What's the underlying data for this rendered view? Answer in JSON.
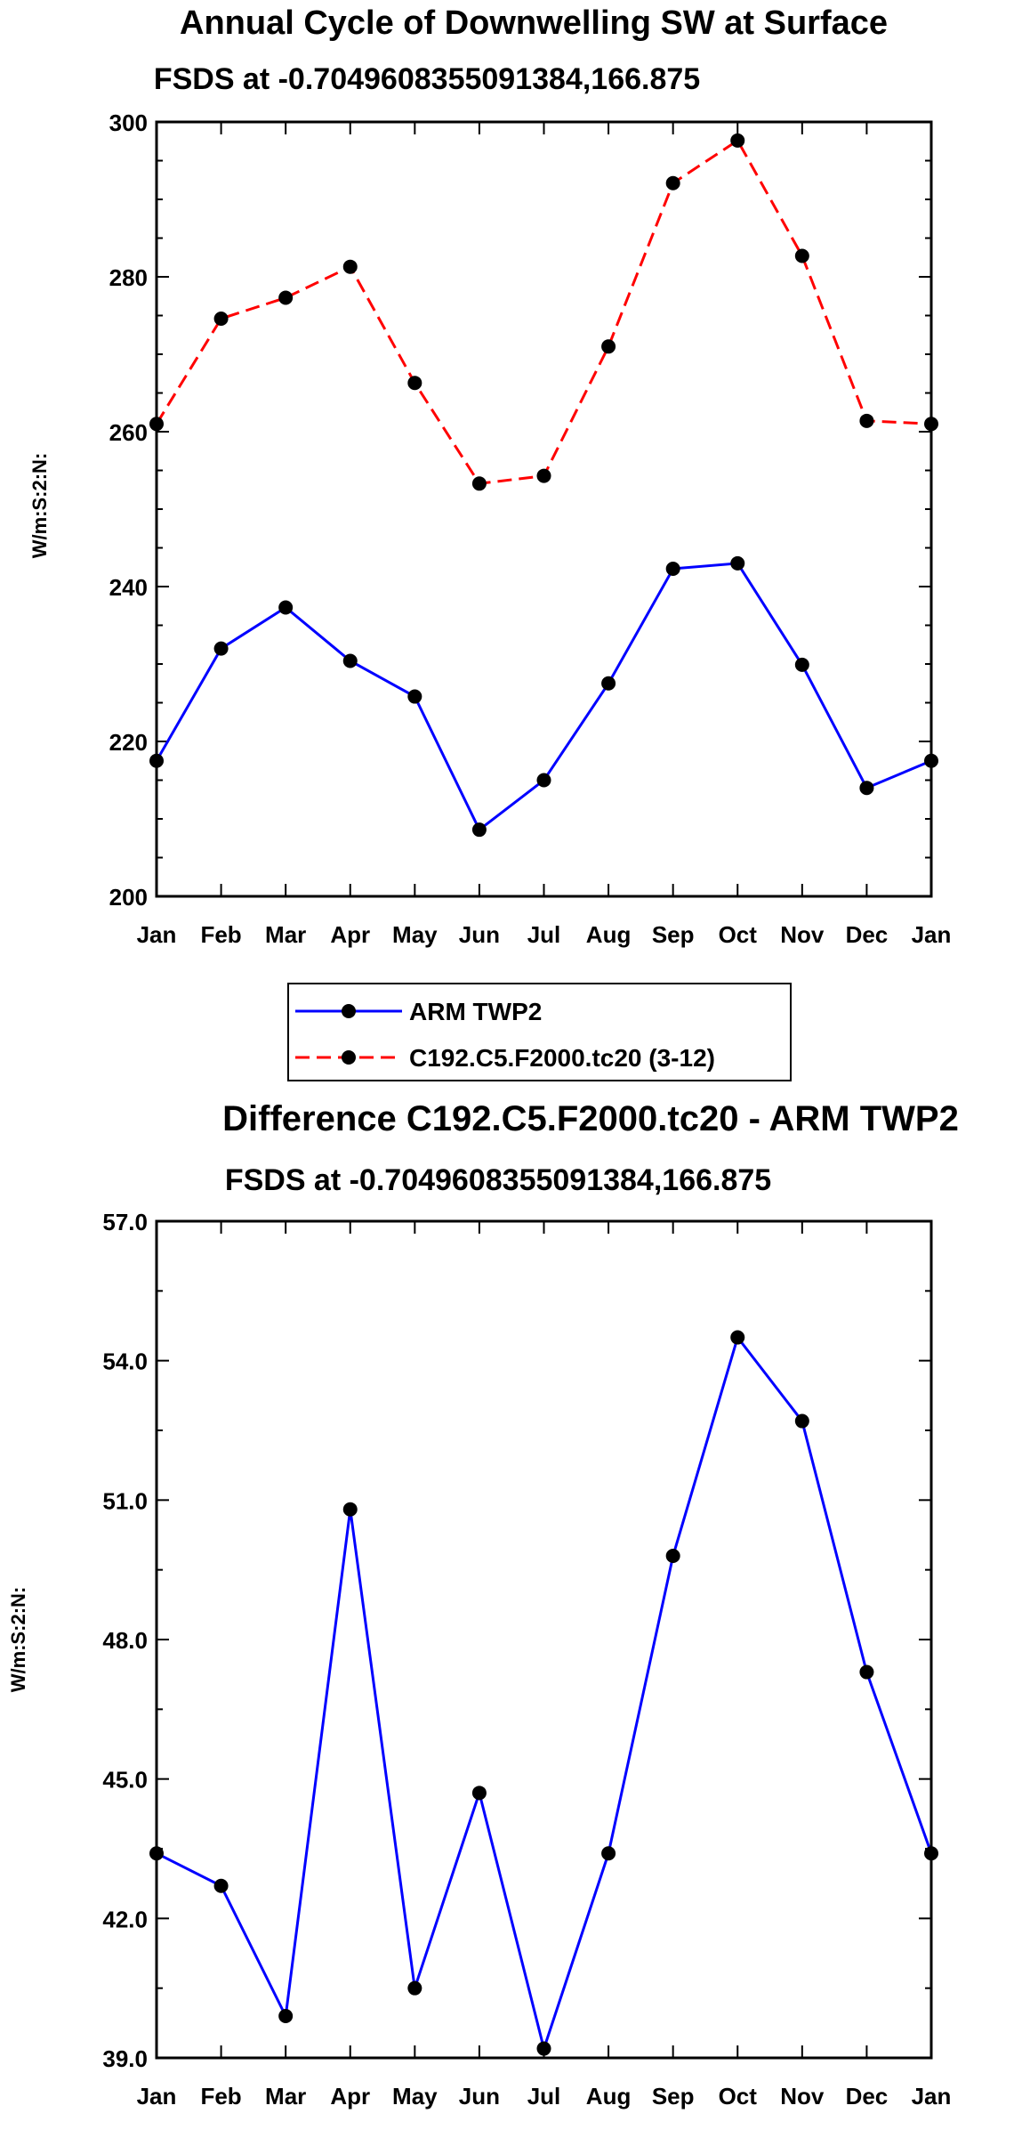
{
  "chart_data": [
    {
      "type": "line",
      "title": "Annual Cycle of Downwelling SW at Surface",
      "subtitle": "FSDS at -0.7049608355091384,166.875",
      "ylabel": "W/m:S:2:N:",
      "xlabel": "",
      "categories": [
        "Jan",
        "Feb",
        "Mar",
        "Apr",
        "May",
        "Jun",
        "Jul",
        "Aug",
        "Sep",
        "Oct",
        "Nov",
        "Dec",
        "Jan"
      ],
      "ylim": [
        200,
        300
      ],
      "yticks": [
        "200",
        "220",
        "240",
        "260",
        "280",
        "300"
      ],
      "legend_position": "bottom",
      "series": [
        {
          "name": "ARM TWP2",
          "color": "#0000ff",
          "dash": "solid",
          "values": [
            217.5,
            232.0,
            237.3,
            230.4,
            225.8,
            208.6,
            215.0,
            227.5,
            242.3,
            243.0,
            229.9,
            214.0,
            217.5
          ]
        },
        {
          "name": "C192.C5.F2000.tc20 (3-12)",
          "color": "#ff0000",
          "dash": "dashed",
          "values": [
            261.0,
            274.6,
            277.3,
            281.3,
            266.3,
            253.3,
            254.3,
            271.0,
            292.1,
            297.6,
            282.7,
            261.4,
            261.0
          ]
        }
      ]
    },
    {
      "type": "line",
      "title": "Difference C192.C5.F2000.tc20 - ARM TWP2",
      "subtitle": "FSDS at -0.7049608355091384,166.875",
      "ylabel": "W/m:S:2:N:",
      "xlabel": "",
      "categories": [
        "Jan",
        "Feb",
        "Mar",
        "Apr",
        "May",
        "Jun",
        "Jul",
        "Aug",
        "Sep",
        "Oct",
        "Nov",
        "Dec",
        "Jan"
      ],
      "ylim": [
        39.0,
        57.0
      ],
      "yticks": [
        "39.0",
        "42.0",
        "45.0",
        "48.0",
        "51.0",
        "54.0",
        "57.0"
      ],
      "series": [
        {
          "name": "Difference",
          "color": "#0000ff",
          "dash": "solid",
          "values": [
            43.4,
            42.7,
            39.9,
            50.8,
            40.5,
            44.7,
            39.2,
            43.4,
            49.8,
            54.5,
            52.7,
            47.3,
            43.4
          ]
        }
      ]
    }
  ]
}
